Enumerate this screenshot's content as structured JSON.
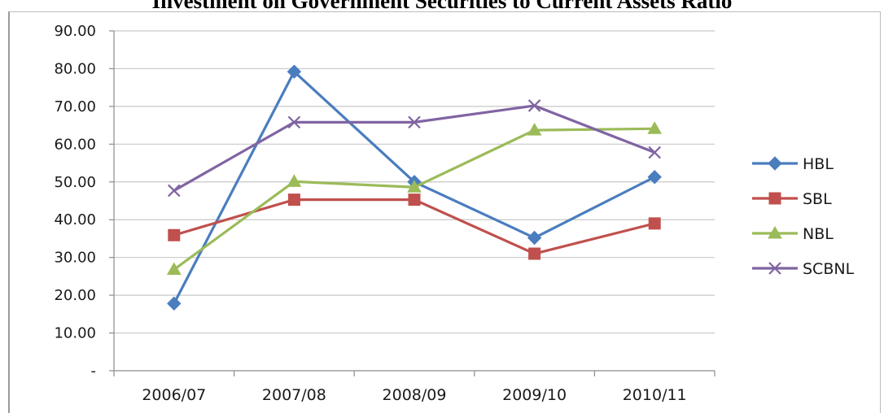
{
  "chart_data": {
    "type": "line",
    "title": "Investment on Government Securities to Current Assets Ratio",
    "categories": [
      "2006/07",
      "2007/08",
      "2008/09",
      "2009/10",
      "2010/11"
    ],
    "y_ticks": [
      "-",
      "10.00",
      "20.00",
      "30.00",
      "40.00",
      "50.00",
      "60.00",
      "70.00",
      "80.00",
      "90.00"
    ],
    "ylim": [
      0,
      90
    ],
    "grid": true,
    "legend_position": "right",
    "series": [
      {
        "name": "HBL",
        "color": "#4a7dbe",
        "marker": "diamond",
        "values": [
          17.8,
          79.2,
          50.0,
          35.2,
          51.3
        ]
      },
      {
        "name": "SBL",
        "color": "#c0504d",
        "marker": "square",
        "values": [
          35.9,
          45.3,
          45.3,
          31.0,
          39.0
        ]
      },
      {
        "name": "NBL",
        "color": "#9bbb59",
        "marker": "triangle",
        "values": [
          26.8,
          50.1,
          48.6,
          63.7,
          64.1
        ]
      },
      {
        "name": "SCBNL",
        "color": "#8064a2",
        "marker": "x",
        "values": [
          47.7,
          65.8,
          65.8,
          70.2,
          57.8
        ]
      }
    ]
  }
}
